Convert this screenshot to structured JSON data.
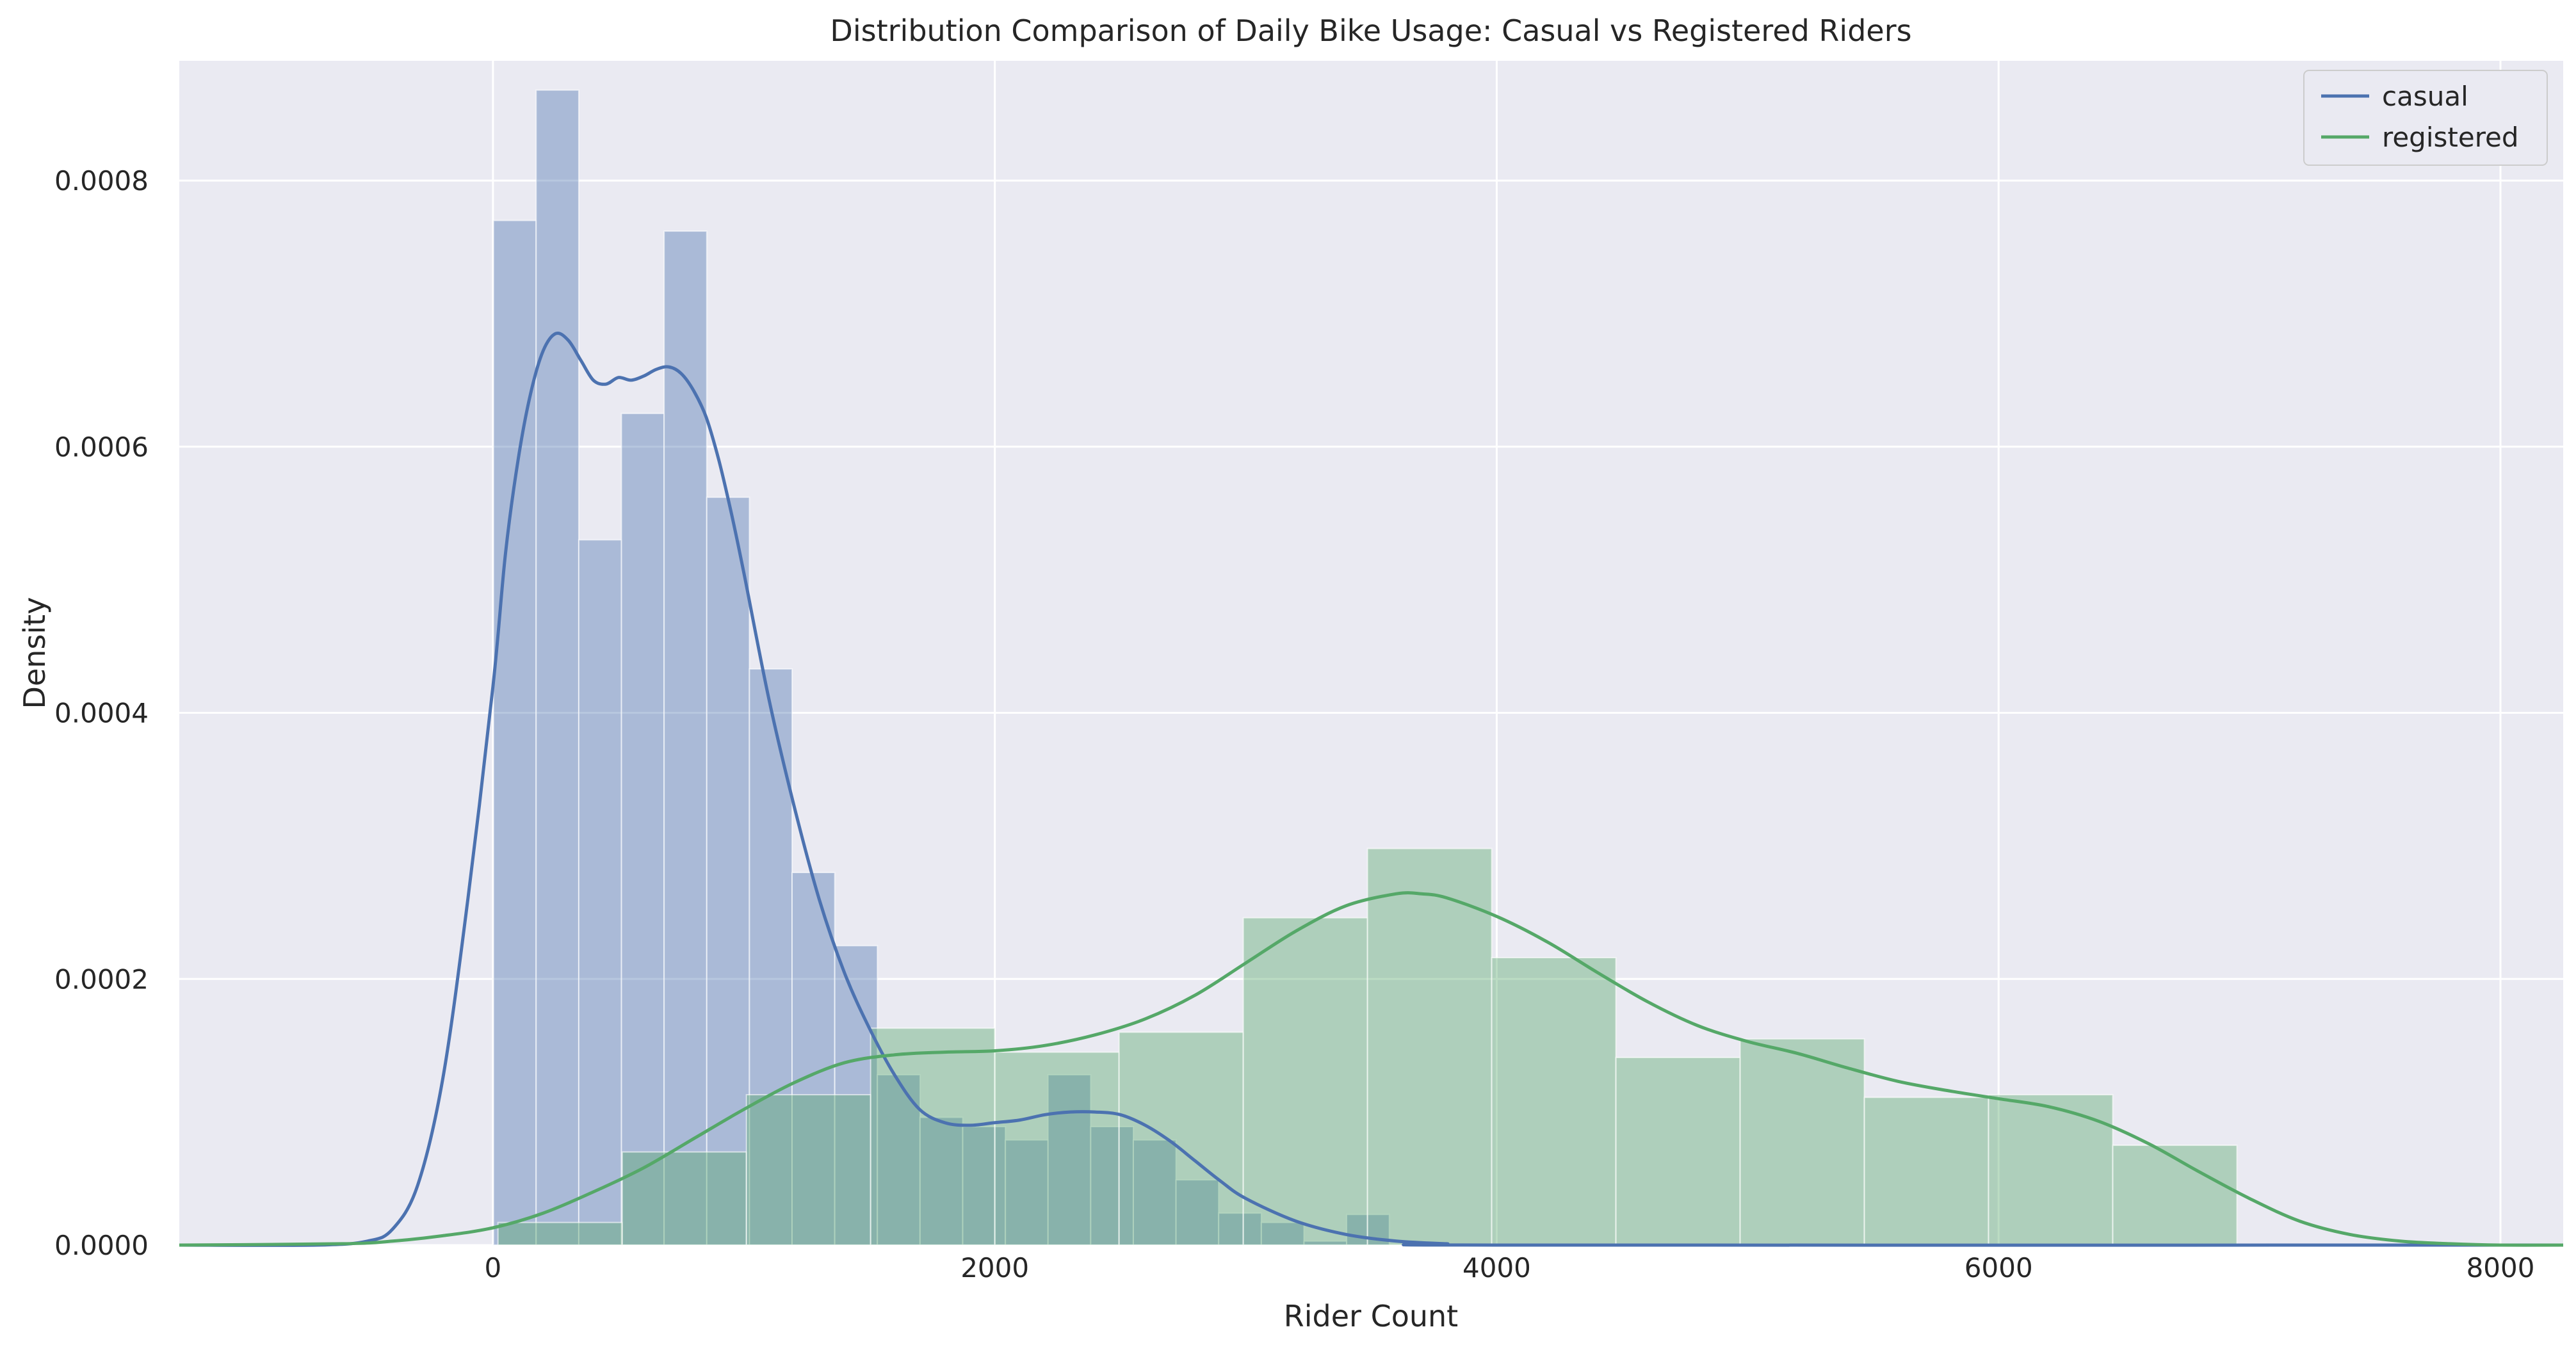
{
  "chart_data": {
    "type": "histogram-kde",
    "title": "Distribution Comparison of Daily Bike Usage: Casual vs Registered Riders",
    "xlabel": "Rider Count",
    "ylabel": "Density",
    "xlim": [
      -1250,
      8250
    ],
    "ylim": [
      0,
      0.00089
    ],
    "xticks": [
      0,
      2000,
      4000,
      6000,
      8000
    ],
    "xtick_labels": [
      "0",
      "2000",
      "4000",
      "6000",
      "8000"
    ],
    "yticks": [
      0,
      0.0002,
      0.0004,
      0.0006,
      0.0008
    ],
    "ytick_labels": [
      "0.0000",
      "0.0002",
      "0.0004",
      "0.0006",
      "0.0008"
    ],
    "grid": true,
    "legend_position": "top-right",
    "colors": {
      "background": "#eaeaf2",
      "grid": "#ffffff",
      "casual": "#4c72b0",
      "registered": "#55a868"
    },
    "series": [
      {
        "name": "casual",
        "color": "#4c72b0",
        "histogram": {
          "bin_start": 2,
          "bin_width": 170,
          "densities": [
            0.00077,
            0.000868,
            0.00053,
            0.000625,
            0.000762,
            0.000562,
            0.000433,
            0.00028,
            0.000225,
            0.000128,
            9.6e-05,
            8.9e-05,
            7.9e-05,
            0.000128,
            8.9e-05,
            7.9e-05,
            4.9e-05,
            2.4e-05,
            1.7e-05,
            3e-06,
            2.3e-05
          ]
        },
        "kde": {
          "x": [
            -1250,
            -700,
            -500,
            -400,
            -300,
            -200,
            -100,
            0,
            50,
            100,
            150,
            200,
            250,
            300,
            350,
            400,
            450,
            500,
            550,
            600,
            650,
            700,
            750,
            800,
            850,
            900,
            950,
            1000,
            1100,
            1200,
            1300,
            1400,
            1500,
            1600,
            1700,
            1800,
            1900,
            2000,
            2100,
            2200,
            2300,
            2400,
            2500,
            2600,
            2700,
            2800,
            2900,
            3000,
            3200,
            3400,
            3600,
            3800,
            4000,
            8250
          ],
          "y": [
            0,
            0,
            3e-06,
            1.2e-05,
            4.5e-05,
            0.000125,
            0.00026,
            0.00042,
            0.00052,
            0.00059,
            0.00064,
            0.000672,
            0.000685,
            0.00068,
            0.000665,
            0.00065,
            0.000647,
            0.000652,
            0.00065,
            0.000653,
            0.000658,
            0.00066,
            0.000655,
            0.000642,
            0.000622,
            0.00059,
            0.00055,
            0.000505,
            0.00041,
            0.00033,
            0.00026,
            0.000205,
            0.000163,
            0.000128,
            0.000102,
            9.2e-05,
            9e-05,
            9.2e-05,
            9.4e-05,
            9.8e-05,
            0.0001,
            0.0001,
            9.8e-05,
            9e-05,
            7.8e-05,
            6.3e-05,
            4.8e-05,
            3.5e-05,
            1.8e-05,
            8e-06,
            3e-06,
            1e-06,
            0,
            0
          ]
        }
      },
      {
        "name": "registered",
        "color": "#55a868",
        "histogram": {
          "bin_start": 20,
          "bin_width": 495,
          "densities": [
            1.7e-05,
            7e-05,
            0.000113,
            0.000163,
            0.000145,
            0.00016,
            0.000246,
            0.000298,
            0.000216,
            0.000141,
            0.000155,
            0.000111,
            0.000113,
            7.5e-05
          ]
        },
        "kde": {
          "x": [
            -1250,
            -600,
            -400,
            -200,
            0,
            200,
            400,
            600,
            800,
            1000,
            1200,
            1400,
            1600,
            1800,
            2000,
            2200,
            2400,
            2600,
            2800,
            3000,
            3200,
            3400,
            3600,
            3700,
            3800,
            4000,
            4200,
            4400,
            4600,
            4800,
            5000,
            5200,
            5400,
            5600,
            5800,
            6000,
            6200,
            6400,
            6600,
            6800,
            7000,
            7200,
            7400,
            7600,
            7800,
            8000,
            8250
          ],
          "y": [
            0,
            1e-06,
            3e-06,
            7e-06,
            1.3e-05,
            2.4e-05,
            4e-05,
            5.8e-05,
            8e-05,
            0.000102,
            0.000122,
            0.000137,
            0.000143,
            0.000145,
            0.000146,
            0.00015,
            0.000158,
            0.00017,
            0.000188,
            0.000212,
            0.000236,
            0.000255,
            0.000264,
            0.000264,
            0.000261,
            0.000247,
            0.000228,
            0.000205,
            0.000183,
            0.000165,
            0.000153,
            0.000144,
            0.000133,
            0.000123,
            0.000116,
            0.00011,
            0.000104,
            9.3e-05,
            7.6e-05,
            5.5e-05,
            3.5e-05,
            1.8e-05,
            8e-06,
            3e-06,
            1e-06,
            0,
            0
          ]
        }
      }
    ]
  }
}
